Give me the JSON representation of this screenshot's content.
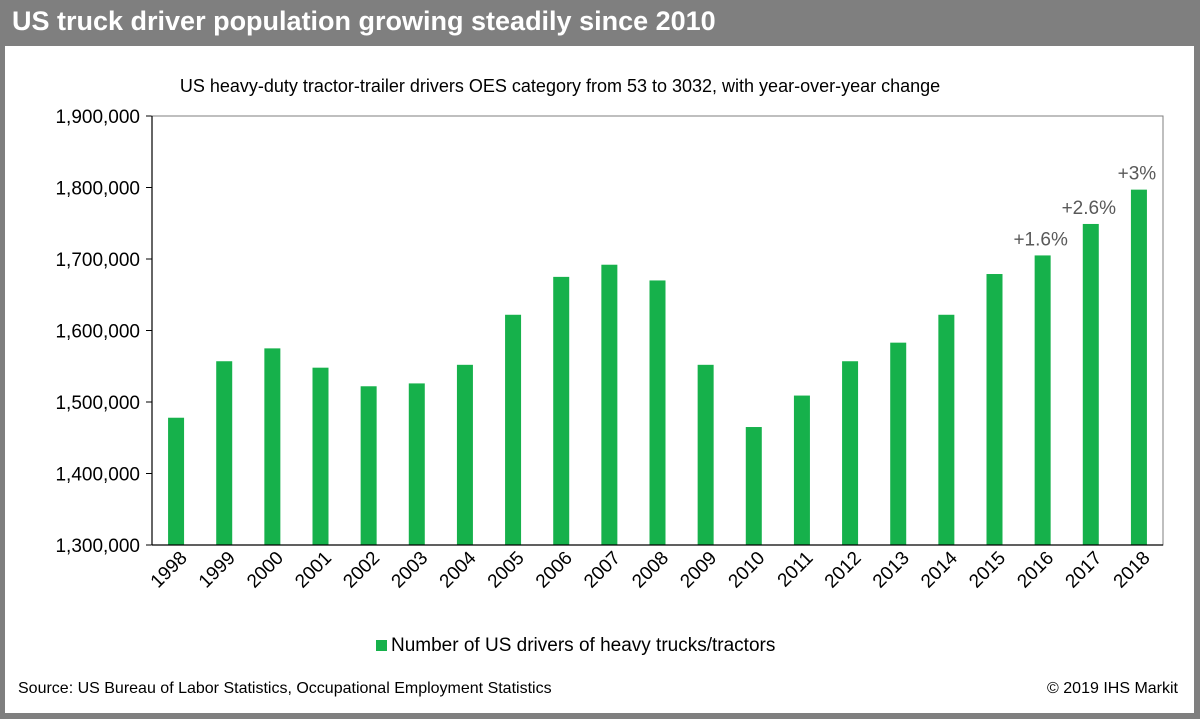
{
  "header": {
    "title": "US truck driver population growing steadily since 2010"
  },
  "footer": {
    "source": "Source: US Bureau of Labor Statistics, Occupational Employment Statistics",
    "copyright": "© 2019 IHS Markit"
  },
  "colors": {
    "bar": "#16b14b",
    "header_bg": "#7f7f7f"
  },
  "chart_data": {
    "type": "bar",
    "title": "US heavy-duty tractor-trailer drivers OES category from 53 to 3032, with year-over-year change",
    "xlabel": "",
    "ylabel": "",
    "ylim": [
      1300000,
      1900000
    ],
    "yticks": [
      1300000,
      1400000,
      1500000,
      1600000,
      1700000,
      1800000,
      1900000
    ],
    "ytick_labels": [
      "1,300,000",
      "1,400,000",
      "1,500,000",
      "1,600,000",
      "1,700,000",
      "1,800,000",
      "1,900,000"
    ],
    "categories": [
      "1998",
      "1999",
      "2000",
      "2001",
      "2002",
      "2003",
      "2004",
      "2005",
      "2006",
      "2007",
      "2008",
      "2009",
      "2010",
      "2011",
      "2012",
      "2013",
      "2014",
      "2015",
      "2016",
      "2017",
      "2018"
    ],
    "series": [
      {
        "name": "Number of US drivers of heavy trucks/tractors",
        "values": [
          1478000,
          1557000,
          1575000,
          1548000,
          1522000,
          1526000,
          1552000,
          1622000,
          1675000,
          1692000,
          1670000,
          1552000,
          1465000,
          1509000,
          1557000,
          1583000,
          1622000,
          1679000,
          1705000,
          1749000,
          1797000
        ]
      }
    ],
    "annotations": [
      {
        "category": "2016",
        "text": "+1.6%"
      },
      {
        "category": "2017",
        "text": "+2.6%"
      },
      {
        "category": "2018",
        "text": "+3%"
      }
    ],
    "grid": false,
    "legend": "bottom"
  }
}
